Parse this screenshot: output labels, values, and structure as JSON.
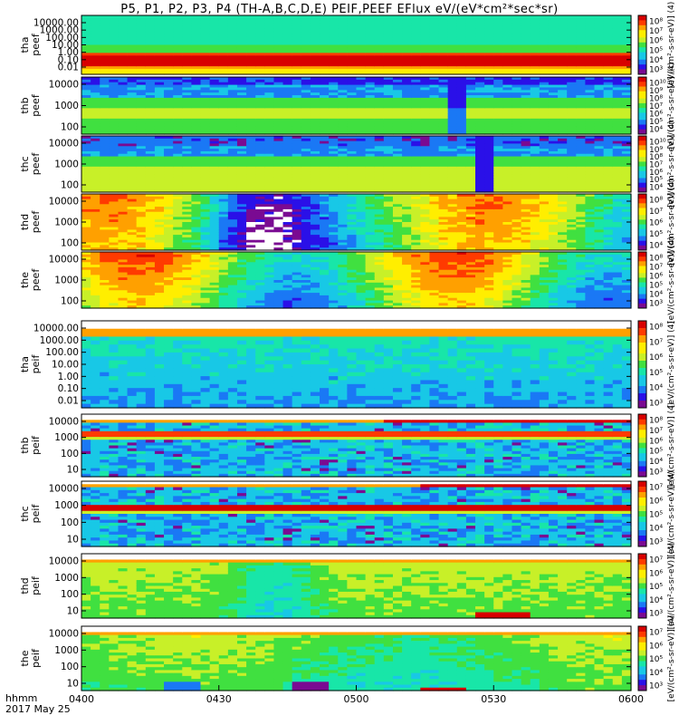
{
  "title": "P5, P1, P2, P3, P4 (TH-A,B,C,D,E) PEIF,PEEF EFlux eV/(eV*cm²*sec*sr)",
  "bottom": {
    "hhmm_label": "hhmm",
    "date_label": "2017 May 25"
  },
  "colors": {
    "background": "#ffffff",
    "frame": "#000000",
    "colormap": [
      "#7a0a92",
      "#2a10e8",
      "#1a78f5",
      "#18c8e6",
      "#18e6a8",
      "#40e040",
      "#c8f028",
      "#ffee00",
      "#ffa000",
      "#ff3a00",
      "#d80000"
    ]
  },
  "chart_data": {
    "type": "heatmap",
    "x_ticks": [
      "0400",
      "0430",
      "0500",
      "0530",
      "0600"
    ],
    "xlim": [
      "04:00",
      "06:00"
    ],
    "panels": [
      {
        "id": "tha-peef",
        "ylabel": [
          "tha",
          "peef"
        ],
        "yticks": [
          "10000.00",
          "1000.00",
          "100.00",
          "10.00",
          "1.00",
          "0.10",
          "0.01"
        ],
        "cbar_ticks": [
          "10⁸",
          "10⁷",
          "10⁶",
          "10⁵",
          "10⁴",
          "10³"
        ],
        "cbar_label": "[eV/(cm²-s-sr-eV)] (4)",
        "pattern": "tha_e"
      },
      {
        "id": "thb-peef",
        "ylabel": [
          "thb",
          "peef"
        ],
        "yticks": [
          "10000",
          "1000",
          "100"
        ],
        "cbar_ticks": [
          "10¹⁰",
          "10⁹",
          "10⁸",
          "10⁷",
          "10⁶",
          "10⁵",
          "10⁴"
        ],
        "cbar_label": "[eV/(cm²-s-sr-eV)] (4)",
        "pattern": "thb_e"
      },
      {
        "id": "thc-peef",
        "ylabel": [
          "thc",
          "peef"
        ],
        "yticks": [
          "10000",
          "1000",
          "100"
        ],
        "cbar_ticks": [
          "10¹⁰",
          "10⁹",
          "10⁸",
          "10⁷",
          "10⁶",
          "10⁵",
          "10⁴"
        ],
        "cbar_label": "[eV/(cm²-s-sr-eV)] (4)",
        "pattern": "thc_e"
      },
      {
        "id": "thd-peef",
        "ylabel": [
          "thd",
          "peef"
        ],
        "yticks": [
          "10000",
          "1000",
          "100"
        ],
        "cbar_ticks": [
          "10⁸",
          "10⁷",
          "10⁶",
          "10⁵",
          "10⁴"
        ],
        "cbar_label": "[eV/(cm²-s-sr-eV)] (4)",
        "pattern": "thd_e"
      },
      {
        "id": "the-peef",
        "ylabel": [
          "the",
          "peef"
        ],
        "yticks": [
          "10000",
          "1000",
          "100"
        ],
        "cbar_ticks": [
          "10⁸",
          "10⁷",
          "10⁶",
          "10⁵",
          "10⁴",
          "10³"
        ],
        "cbar_label": "[eV/(cm²-s-sr-eV)] (4)",
        "pattern": "the_e"
      },
      {
        "id": "tha-peif",
        "ylabel": [
          "tha",
          "peif"
        ],
        "yticks": [
          "10000.00",
          "1000.00",
          "100.00",
          "10.00",
          "1.00",
          "0.10",
          "0.01"
        ],
        "cbar_ticks": [
          "10⁸",
          "10⁷",
          "10⁶",
          "10⁵",
          "10⁴",
          "10³"
        ],
        "cbar_label": "[eV/(cm²-s-sr-eV)] (4)",
        "pattern": "tha_i"
      },
      {
        "id": "thb-peif",
        "ylabel": [
          "thb",
          "peif"
        ],
        "yticks": [
          "10000",
          "1000",
          "100",
          "10"
        ],
        "cbar_ticks": [
          "10⁸",
          "10⁷",
          "10⁶",
          "10⁵",
          "10⁴",
          "10³"
        ],
        "cbar_label": "[eV/(cm²-s-sr-eV)] (4)",
        "pattern": "thb_i"
      },
      {
        "id": "thc-peif",
        "ylabel": [
          "thc",
          "peif"
        ],
        "yticks": [
          "10000",
          "1000",
          "100",
          "10"
        ],
        "cbar_ticks": [
          "10⁷",
          "10⁶",
          "10⁵",
          "10⁴",
          "10³"
        ],
        "cbar_label": "[eV/(cm²-s-sr-eV)] (4)",
        "pattern": "thc_i"
      },
      {
        "id": "thd-peif",
        "ylabel": [
          "thd",
          "peif"
        ],
        "yticks": [
          "10000",
          "1000",
          "100",
          "10"
        ],
        "cbar_ticks": [
          "10⁷",
          "10⁶",
          "10⁵",
          "10⁴",
          "10³"
        ],
        "cbar_label": "[eV/(cm²-s-sr-eV)] (4)",
        "pattern": "thd_i"
      },
      {
        "id": "the-peif",
        "ylabel": [
          "the",
          "peif"
        ],
        "yticks": [
          "10000",
          "1000",
          "100",
          "10"
        ],
        "cbar_ticks": [
          "10⁷",
          "10⁶",
          "10⁵",
          "10⁴",
          "10³"
        ],
        "cbar_label": "[eV/(cm²-s-sr-eV)] (4)",
        "pattern": "the_i"
      }
    ]
  }
}
